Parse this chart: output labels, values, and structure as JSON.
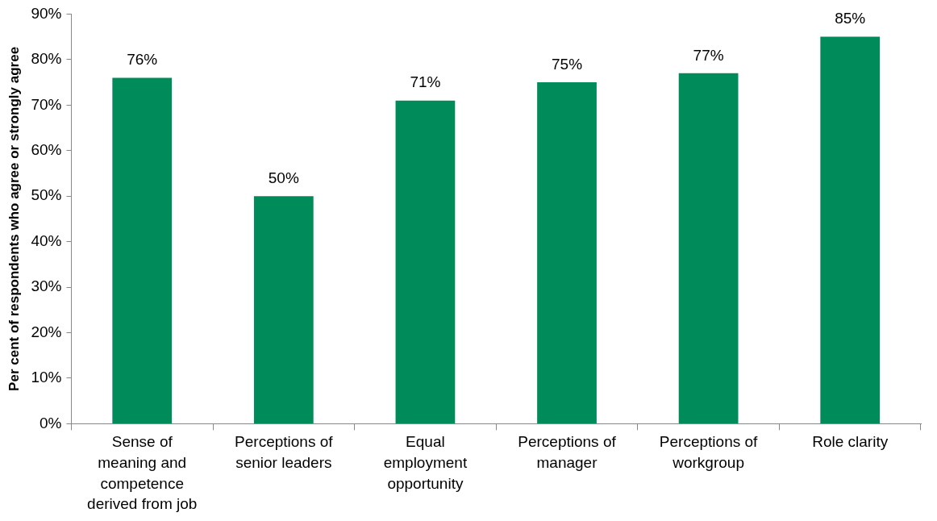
{
  "chart_data": {
    "type": "bar",
    "ylabel": "Per cent of respondents who agree or strongly agree",
    "categories": [
      "Sense of meaning and competence derived from job",
      "Perceptions of senior leaders",
      "Equal employment opportunity",
      "Perceptions of manager",
      "Perceptions of workgroup",
      "Role clarity"
    ],
    "values": [
      76,
      50,
      71,
      75,
      77,
      85
    ],
    "color": "#008c5a",
    "value_labels": [
      "76%",
      "50%",
      "71%",
      "75%",
      "77%",
      "85%"
    ],
    "ylim": [
      0,
      90
    ],
    "yticks": [
      {
        "value": 0,
        "label": "0%"
      },
      {
        "value": 10,
        "label": "10%"
      },
      {
        "value": 20,
        "label": "20%"
      },
      {
        "value": 30,
        "label": "30%"
      },
      {
        "value": 40,
        "label": "40%"
      },
      {
        "value": 50,
        "label": "50%"
      },
      {
        "value": 60,
        "label": "60%"
      },
      {
        "value": 70,
        "label": "70%"
      },
      {
        "value": 80,
        "label": "80%"
      },
      {
        "value": 90,
        "label": "90%"
      }
    ],
    "grid": false,
    "legend": false
  }
}
